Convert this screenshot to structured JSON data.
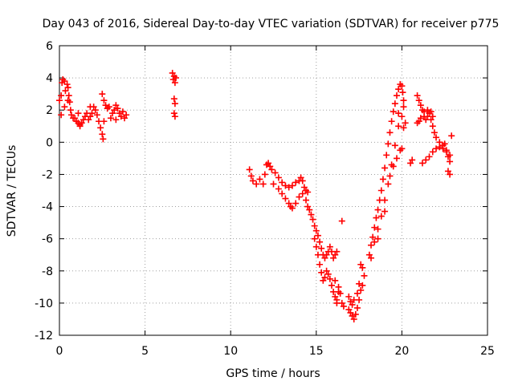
{
  "chart_data": {
    "type": "scatter",
    "title": "Day 043 of 2016, Sidereal Day-to-day VTEC variation (SDTVAR) for receiver p775",
    "xlabel": "GPS time / hours",
    "ylabel": "SDTVAR / TECUs",
    "xlim": [
      0,
      25
    ],
    "ylim": [
      -12,
      6
    ],
    "xticks": [
      "0",
      "5",
      "10",
      "15",
      "20",
      "25"
    ],
    "yticks": [
      "-12",
      "-10",
      "-8",
      "-6",
      "-4",
      "-2",
      "0",
      "2",
      "4",
      "6"
    ],
    "grid": true,
    "legend": "none",
    "marker": "+",
    "color": "#ff0000",
    "series": [
      {
        "points": [
          [
            0.0,
            2.6
          ],
          [
            0.1,
            2.9
          ],
          [
            0.15,
            3.7
          ],
          [
            0.2,
            3.9
          ],
          [
            0.3,
            3.8
          ],
          [
            0.35,
            3.2
          ],
          [
            0.45,
            3.6
          ],
          [
            0.5,
            3.4
          ],
          [
            0.55,
            2.9
          ],
          [
            0.6,
            2.5
          ],
          [
            0.65,
            2.0
          ],
          [
            0.7,
            1.7
          ],
          [
            0.8,
            1.5
          ],
          [
            0.9,
            1.5
          ],
          [
            1.0,
            1.3
          ],
          [
            1.1,
            1.2
          ],
          [
            1.2,
            1.1
          ],
          [
            1.3,
            1.2
          ],
          [
            1.4,
            1.4
          ],
          [
            1.5,
            1.6
          ],
          [
            1.6,
            1.8
          ],
          [
            1.7,
            1.4
          ],
          [
            1.8,
            1.6
          ],
          [
            1.9,
            1.8
          ],
          [
            2.0,
            2.2
          ],
          [
            2.1,
            2.0
          ],
          [
            2.2,
            1.7
          ],
          [
            2.3,
            1.3
          ],
          [
            2.4,
            0.9
          ],
          [
            2.5,
            0.5
          ],
          [
            2.55,
            0.2
          ],
          [
            2.6,
            1.3
          ],
          [
            2.5,
            3.0
          ],
          [
            2.6,
            2.6
          ],
          [
            2.7,
            2.3
          ],
          [
            2.8,
            2.1
          ],
          [
            2.9,
            2.2
          ],
          [
            3.0,
            1.5
          ],
          [
            3.1,
            1.8
          ],
          [
            3.2,
            2.0
          ],
          [
            3.3,
            2.3
          ],
          [
            3.4,
            2.1
          ],
          [
            3.5,
            1.8
          ],
          [
            3.6,
            1.6
          ],
          [
            3.7,
            1.9
          ],
          [
            3.8,
            1.5
          ],
          [
            3.9,
            1.7
          ],
          [
            0.1,
            1.7
          ],
          [
            0.3,
            2.2
          ],
          [
            0.5,
            2.6
          ],
          [
            1.1,
            1.8
          ],
          [
            1.2,
            1.0
          ],
          [
            1.8,
            2.2
          ],
          [
            3.3,
            1.4
          ],
          [
            6.6,
            4.3
          ],
          [
            6.65,
            3.9
          ],
          [
            6.7,
            4.1
          ],
          [
            6.75,
            3.7
          ],
          [
            6.8,
            4.0
          ],
          [
            6.7,
            2.7
          ],
          [
            6.75,
            2.4
          ],
          [
            6.7,
            1.8
          ],
          [
            6.75,
            1.6
          ],
          [
            11.1,
            -1.7
          ],
          [
            11.2,
            -2.1
          ],
          [
            11.3,
            -2.4
          ],
          [
            11.5,
            -2.6
          ],
          [
            11.7,
            -2.3
          ],
          [
            11.9,
            -2.6
          ],
          [
            12.0,
            -2.0
          ],
          [
            12.1,
            -1.4
          ],
          [
            12.2,
            -1.3
          ],
          [
            12.3,
            -1.5
          ],
          [
            12.4,
            -1.7
          ],
          [
            12.6,
            -1.9
          ],
          [
            12.8,
            -2.2
          ],
          [
            13.0,
            -2.5
          ],
          [
            13.2,
            -2.7
          ],
          [
            13.4,
            -2.8
          ],
          [
            13.6,
            -2.7
          ],
          [
            13.8,
            -2.5
          ],
          [
            14.0,
            -2.4
          ],
          [
            14.1,
            -2.2
          ],
          [
            14.2,
            -2.4
          ],
          [
            14.3,
            -2.8
          ],
          [
            14.4,
            -3.0
          ],
          [
            14.5,
            -3.1
          ],
          [
            12.5,
            -2.6
          ],
          [
            12.8,
            -2.9
          ],
          [
            13.0,
            -3.2
          ],
          [
            13.2,
            -3.5
          ],
          [
            13.4,
            -3.8
          ],
          [
            13.5,
            -4.0
          ],
          [
            13.6,
            -4.1
          ],
          [
            13.8,
            -3.8
          ],
          [
            14.0,
            -3.4
          ],
          [
            14.2,
            -3.2
          ],
          [
            14.4,
            -3.6
          ],
          [
            14.5,
            -4.0
          ],
          [
            14.6,
            -4.2
          ],
          [
            14.7,
            -4.5
          ],
          [
            14.8,
            -4.8
          ],
          [
            14.9,
            -5.2
          ],
          [
            15.0,
            -5.5
          ],
          [
            15.1,
            -5.8
          ],
          [
            15.2,
            -6.2
          ],
          [
            15.3,
            -6.6
          ],
          [
            15.4,
            -7.0
          ],
          [
            15.5,
            -7.2
          ],
          [
            15.6,
            -7.0
          ],
          [
            15.7,
            -6.8
          ],
          [
            15.8,
            -6.5
          ],
          [
            15.9,
            -6.8
          ],
          [
            16.0,
            -7.2
          ],
          [
            16.1,
            -7.0
          ],
          [
            16.2,
            -6.8
          ],
          [
            14.9,
            -6.0
          ],
          [
            15.0,
            -6.5
          ],
          [
            15.1,
            -7.0
          ],
          [
            15.2,
            -7.6
          ],
          [
            15.3,
            -8.1
          ],
          [
            15.4,
            -8.6
          ],
          [
            15.5,
            -8.4
          ],
          [
            15.6,
            -8.0
          ],
          [
            15.7,
            -8.2
          ],
          [
            15.8,
            -8.5
          ],
          [
            15.9,
            -8.9
          ],
          [
            16.0,
            -9.3
          ],
          [
            16.1,
            -9.6
          ],
          [
            16.2,
            -9.8
          ],
          [
            16.3,
            -9.3
          ],
          [
            16.5,
            -10.0
          ],
          [
            16.6,
            -10.2
          ],
          [
            16.2,
            -10.0
          ],
          [
            16.5,
            -4.9
          ],
          [
            16.1,
            -8.6
          ],
          [
            16.3,
            -9.0
          ],
          [
            16.4,
            -9.4
          ]
        ]
      },
      {
        "points": [
          [
            16.9,
            -10.4
          ],
          [
            17.0,
            -10.6
          ],
          [
            17.1,
            -10.8
          ],
          [
            17.2,
            -11.0
          ],
          [
            17.3,
            -10.7
          ],
          [
            17.4,
            -10.3
          ],
          [
            17.5,
            -9.8
          ],
          [
            17.6,
            -9.2
          ],
          [
            17.7,
            -8.9
          ],
          [
            16.9,
            -9.6
          ],
          [
            17.0,
            -9.9
          ],
          [
            17.1,
            -10.1
          ],
          [
            17.2,
            -9.8
          ],
          [
            17.4,
            -9.4
          ],
          [
            17.5,
            -8.8
          ],
          [
            17.6,
            -7.6
          ],
          [
            17.7,
            -7.8
          ],
          [
            17.8,
            -8.3
          ],
          [
            18.1,
            -7.0
          ],
          [
            18.2,
            -6.4
          ],
          [
            18.3,
            -5.9
          ],
          [
            18.4,
            -5.3
          ],
          [
            18.5,
            -4.7
          ],
          [
            18.6,
            -4.2
          ],
          [
            18.7,
            -3.6
          ],
          [
            18.8,
            -3.0
          ],
          [
            18.9,
            -2.3
          ],
          [
            19.0,
            -1.6
          ],
          [
            19.1,
            -0.8
          ],
          [
            19.2,
            -0.1
          ],
          [
            19.3,
            0.6
          ],
          [
            19.4,
            1.3
          ],
          [
            19.5,
            1.9
          ],
          [
            19.6,
            2.4
          ],
          [
            19.7,
            2.9
          ],
          [
            19.8,
            3.3
          ],
          [
            19.9,
            3.6
          ],
          [
            20.0,
            3.5
          ],
          [
            20.05,
            3.1
          ],
          [
            20.1,
            2.6
          ],
          [
            18.4,
            -6.2
          ],
          [
            18.6,
            -5.4
          ],
          [
            18.8,
            -4.6
          ],
          [
            19.0,
            -3.6
          ],
          [
            19.2,
            -2.6
          ],
          [
            19.4,
            -1.4
          ],
          [
            19.6,
            -0.2
          ],
          [
            19.8,
            1.0
          ],
          [
            20.0,
            1.6
          ],
          [
            20.1,
            2.2
          ],
          [
            18.2,
            -7.2
          ],
          [
            18.6,
            -6.0
          ],
          [
            19.0,
            -4.3
          ],
          [
            19.3,
            -2.1
          ],
          [
            19.5,
            -1.5
          ],
          [
            19.7,
            -1.0
          ],
          [
            19.9,
            -0.5
          ],
          [
            20.0,
            -0.4
          ],
          [
            20.1,
            0.9
          ],
          [
            20.2,
            1.2
          ],
          [
            19.8,
            1.8
          ],
          [
            20.9,
            2.9
          ],
          [
            21.0,
            2.6
          ],
          [
            21.1,
            2.3
          ],
          [
            21.2,
            2.0
          ],
          [
            21.3,
            1.6
          ],
          [
            21.4,
            1.4
          ],
          [
            21.5,
            1.6
          ],
          [
            21.6,
            1.8
          ],
          [
            21.7,
            1.4
          ],
          [
            21.8,
            1.0
          ],
          [
            21.9,
            0.6
          ],
          [
            22.0,
            0.3
          ],
          [
            22.2,
            0.0
          ],
          [
            22.4,
            -0.2
          ],
          [
            22.6,
            -0.5
          ],
          [
            22.8,
            -0.8
          ],
          [
            20.9,
            1.2
          ],
          [
            21.0,
            1.3
          ],
          [
            21.1,
            1.5
          ],
          [
            21.3,
            1.9
          ],
          [
            21.5,
            2.0
          ],
          [
            21.7,
            1.9
          ],
          [
            21.8,
            1.6
          ],
          [
            21.2,
            -1.3
          ],
          [
            21.4,
            -1.1
          ],
          [
            21.6,
            -0.9
          ],
          [
            21.8,
            -0.6
          ],
          [
            22.0,
            -0.4
          ],
          [
            22.2,
            -0.3
          ],
          [
            22.4,
            -0.4
          ],
          [
            22.6,
            -0.6
          ],
          [
            22.7,
            -0.9
          ],
          [
            22.8,
            -1.2
          ],
          [
            22.7,
            -1.8
          ],
          [
            22.8,
            -2.0
          ],
          [
            22.9,
            0.4
          ],
          [
            20.5,
            -1.3
          ],
          [
            20.6,
            -1.1
          ],
          [
            22.5,
            -0.1
          ]
        ]
      }
    ]
  }
}
